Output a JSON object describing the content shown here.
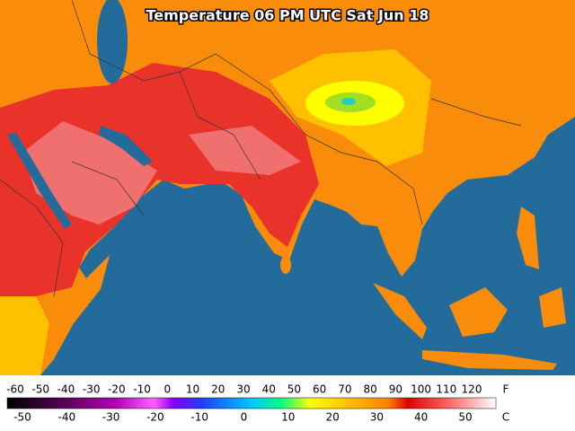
{
  "title": "Temperature 06 PM UTC Sat Jun 18",
  "legend": {
    "fahrenheit_unit": "F",
    "celsius_unit": "C",
    "fahrenheit_labels": [
      "-60",
      "-50",
      "-40",
      "-30",
      "-20",
      "-10",
      "0",
      "10",
      "20",
      "30",
      "40",
      "50",
      "60",
      "70",
      "80",
      "90",
      "100",
      "110",
      "120"
    ],
    "celsius_labels": [
      "-50",
      "-40",
      "-30",
      "-20",
      "-10",
      "0",
      "10",
      "20",
      "30",
      "40",
      "50"
    ]
  }
}
